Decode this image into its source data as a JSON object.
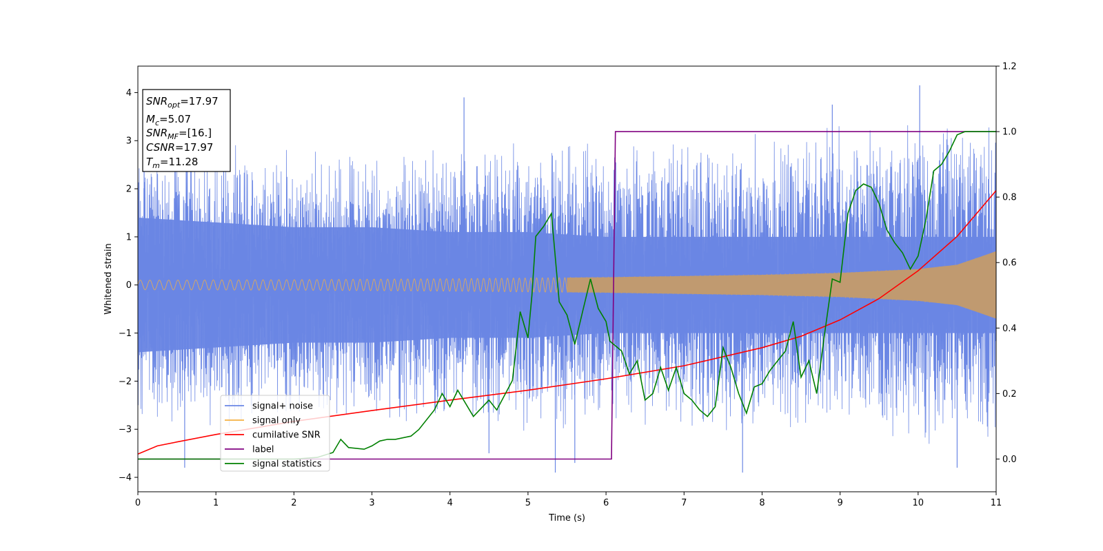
{
  "chart_data": {
    "type": "line",
    "xlabel": "Time (s)",
    "ylabel": "Whitened strain",
    "xlim": [
      0,
      11
    ],
    "ylim": [
      -4.3,
      4.55
    ],
    "y2lim": [
      -0.1,
      1.2
    ],
    "xticks": [
      0,
      1,
      2,
      3,
      4,
      5,
      6,
      7,
      8,
      9,
      10,
      11
    ],
    "xtick_labels": [
      "0",
      "1",
      "2",
      "3",
      "4",
      "5",
      "6",
      "7",
      "8",
      "9",
      "10",
      "11"
    ],
    "yticks": [
      -4,
      -3,
      -2,
      -1,
      0,
      1,
      2,
      3,
      4
    ],
    "ytick_labels": [
      "−4",
      "−3",
      "−2",
      "−1",
      "0",
      "1",
      "2",
      "3",
      "4"
    ],
    "y2ticks": [
      0.0,
      0.2,
      0.4,
      0.6,
      0.8,
      1.0,
      1.2
    ],
    "y2tick_labels": [
      "0.0",
      "0.2",
      "0.4",
      "0.6",
      "0.8",
      "1.0",
      "1.2"
    ],
    "grid": false,
    "legend_position": "lower-left",
    "info_box": {
      "position": "upper-left",
      "lines": [
        {
          "main": "SNR",
          "sub": "opt",
          "rest": "=17.97"
        },
        {
          "main": "M",
          "sub": "c",
          "rest": "=5.07"
        },
        {
          "main": "SNR",
          "sub": "MF",
          "rest": "=[16.]"
        },
        {
          "main": "CSNR",
          "sub": "",
          "rest": "=17.97"
        },
        {
          "main": "T",
          "sub": "m",
          "rest": "=11.28"
        }
      ]
    },
    "series": [
      {
        "name": "signal+ noise",
        "axis": "left",
        "color": "#6a86e4",
        "kind": "noise_band",
        "x": [
          0,
          1,
          2,
          3,
          4,
          5,
          6,
          7,
          8,
          9,
          10,
          11
        ],
        "envelope_upper": [
          3.1,
          3.0,
          2.9,
          2.9,
          3.0,
          3.1,
          3.1,
          3.2,
          3.3,
          3.4,
          3.6,
          3.8
        ],
        "envelope_lower": [
          -3.0,
          -3.1,
          -3.0,
          -3.0,
          -3.0,
          -3.1,
          -3.1,
          -3.1,
          -3.2,
          -3.3,
          -3.4,
          -3.6
        ],
        "dense_fill_half_width": [
          1.4,
          1.3,
          1.2,
          1.2,
          1.1,
          1.1,
          1.0,
          1.0,
          1.0,
          1.0,
          1.0,
          1.0
        ],
        "spikes": [
          [
            0.08,
            3.8
          ],
          [
            0.6,
            -3.8
          ],
          [
            1.1,
            3.2
          ],
          [
            4.18,
            3.9
          ],
          [
            4.5,
            -3.5
          ],
          [
            5.35,
            -3.9
          ],
          [
            5.6,
            -3.7
          ],
          [
            7.75,
            -3.9
          ],
          [
            8.9,
            3.75
          ],
          [
            10.02,
            4.15
          ],
          [
            10.5,
            -3.8
          ]
        ]
      },
      {
        "name": "signal only",
        "axis": "left",
        "color": "#f5b041",
        "kind": "chirp",
        "x": [
          0,
          2,
          4,
          6,
          8,
          9,
          10,
          10.5,
          11
        ],
        "amplitude": [
          0.1,
          0.11,
          0.13,
          0.16,
          0.21,
          0.25,
          0.33,
          0.42,
          0.7
        ]
      },
      {
        "name": "cumilative SNR",
        "axis": "right",
        "color": "#ff0000",
        "x": [
          0,
          0.25,
          0.5,
          1,
          2,
          3,
          4,
          5,
          6,
          7,
          8,
          8.5,
          9,
          9.5,
          10,
          10.5,
          11
        ],
        "values": [
          0.015,
          0.04,
          0.052,
          0.075,
          0.115,
          0.148,
          0.18,
          0.21,
          0.245,
          0.285,
          0.34,
          0.375,
          0.425,
          0.49,
          0.575,
          0.68,
          0.82
        ]
      },
      {
        "name": "label",
        "axis": "right",
        "color": "#800080",
        "x": [
          0,
          6.07,
          6.12,
          11
        ],
        "values": [
          0.0,
          0.0,
          1.0,
          1.0
        ]
      },
      {
        "name": "signal statistics",
        "axis": "right",
        "color": "#008000",
        "x": [
          0,
          1,
          2,
          2.3,
          2.5,
          2.6,
          2.7,
          2.9,
          3.0,
          3.1,
          3.2,
          3.3,
          3.5,
          3.6,
          3.8,
          3.9,
          4.0,
          4.1,
          4.3,
          4.5,
          4.6,
          4.8,
          4.9,
          5.0,
          5.05,
          5.1,
          5.2,
          5.3,
          5.4,
          5.5,
          5.6,
          5.7,
          5.75,
          5.8,
          5.9,
          6.0,
          6.05,
          6.1,
          6.2,
          6.3,
          6.4,
          6.5,
          6.6,
          6.7,
          6.8,
          6.9,
          7.0,
          7.1,
          7.2,
          7.3,
          7.4,
          7.5,
          7.6,
          7.7,
          7.8,
          7.9,
          8.0,
          8.1,
          8.2,
          8.3,
          8.4,
          8.5,
          8.6,
          8.7,
          8.8,
          8.9,
          9.0,
          9.1,
          9.2,
          9.3,
          9.4,
          9.5,
          9.6,
          9.7,
          9.8,
          9.9,
          10.0,
          10.1,
          10.2,
          10.3,
          10.4,
          10.5,
          10.6,
          10.7,
          10.8,
          11.0
        ],
        "values": [
          0.0,
          0.0,
          0.0,
          0.005,
          0.02,
          0.06,
          0.035,
          0.03,
          0.04,
          0.055,
          0.06,
          0.06,
          0.07,
          0.09,
          0.15,
          0.2,
          0.16,
          0.21,
          0.13,
          0.18,
          0.15,
          0.24,
          0.45,
          0.37,
          0.5,
          0.68,
          0.71,
          0.75,
          0.48,
          0.44,
          0.35,
          0.45,
          0.5,
          0.55,
          0.46,
          0.42,
          0.36,
          0.35,
          0.33,
          0.26,
          0.3,
          0.18,
          0.2,
          0.28,
          0.21,
          0.28,
          0.2,
          0.18,
          0.15,
          0.13,
          0.16,
          0.34,
          0.28,
          0.2,
          0.14,
          0.22,
          0.23,
          0.27,
          0.3,
          0.33,
          0.42,
          0.25,
          0.3,
          0.2,
          0.38,
          0.55,
          0.54,
          0.75,
          0.82,
          0.84,
          0.83,
          0.78,
          0.7,
          0.66,
          0.63,
          0.58,
          0.62,
          0.73,
          0.88,
          0.9,
          0.94,
          0.99,
          1.0,
          1.0,
          1.0,
          1.0
        ]
      }
    ]
  }
}
